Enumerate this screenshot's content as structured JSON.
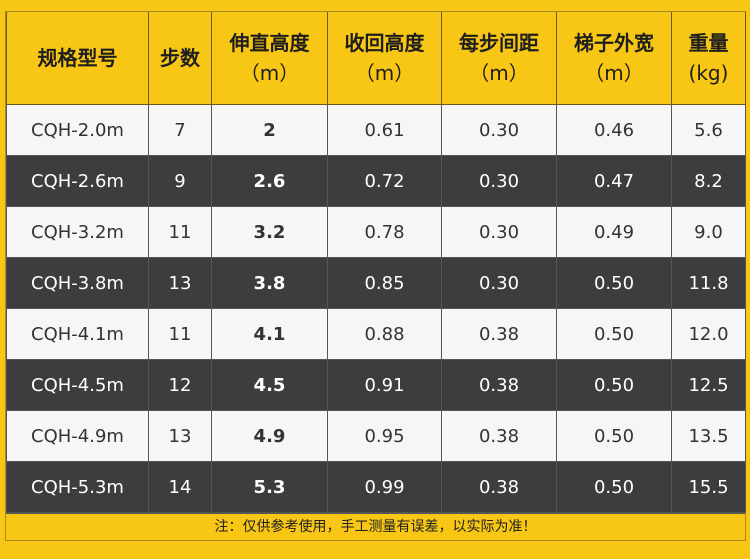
{
  "table": {
    "headers": [
      {
        "line1": "规格型号",
        "line2": ""
      },
      {
        "line1": "步数",
        "line2": ""
      },
      {
        "line1": "伸直高度",
        "line2": "（m）"
      },
      {
        "line1": "收回高度",
        "line2": "（m）"
      },
      {
        "line1": "每步间距",
        "line2": "（m）"
      },
      {
        "line1": "梯子外宽",
        "line2": "（m）"
      },
      {
        "line1": "重量",
        "line2": "(kg)"
      }
    ],
    "rows": [
      [
        "CQH-2.0m",
        "7",
        "2",
        "0.61",
        "0.30",
        "0.46",
        "5.6"
      ],
      [
        "CQH-2.6m",
        "9",
        "2.6",
        "0.72",
        "0.30",
        "0.47",
        "8.2"
      ],
      [
        "CQH-3.2m",
        "11",
        "3.2",
        "0.78",
        "0.30",
        "0.49",
        "9.0"
      ],
      [
        "CQH-3.8m",
        "13",
        "3.8",
        "0.85",
        "0.30",
        "0.50",
        "11.8"
      ],
      [
        "CQH-4.1m",
        "11",
        "4.1",
        "0.88",
        "0.38",
        "0.50",
        "12.0"
      ],
      [
        "CQH-4.5m",
        "12",
        "4.5",
        "0.91",
        "0.38",
        "0.50",
        "12.5"
      ],
      [
        "CQH-4.9m",
        "13",
        "4.9",
        "0.95",
        "0.38",
        "0.50",
        "13.5"
      ],
      [
        "CQH-5.3m",
        "14",
        "5.3",
        "0.99",
        "0.38",
        "0.50",
        "15.5"
      ]
    ]
  },
  "note": "注：仅供参考使用，手工测量有误差，以实际为准！",
  "colors": {
    "background": "#f8c615",
    "row_light": "#f6f6f6",
    "row_dark": "#3e3c3c"
  }
}
